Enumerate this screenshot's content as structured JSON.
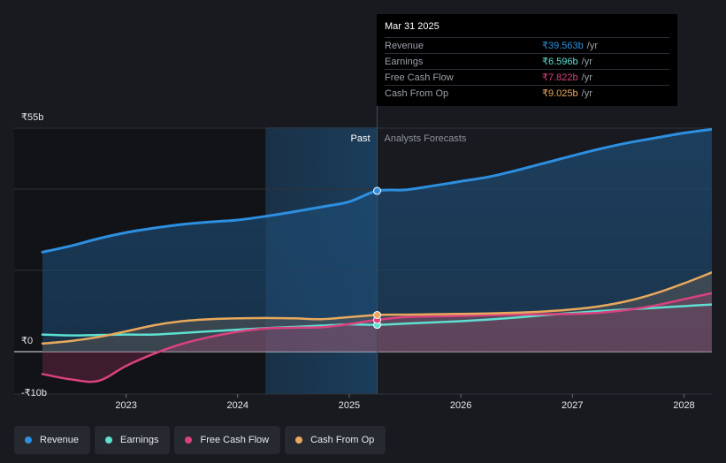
{
  "chart_data": {
    "type": "line",
    "currency_unit": "₹b",
    "y_ticks": [
      {
        "value": 55,
        "label": "₹55b"
      },
      {
        "value": 0,
        "label": "₹0"
      },
      {
        "value": -10,
        "label": "-₹10b"
      }
    ],
    "ylim": [
      -10,
      55
    ],
    "xlim": [
      2022.25,
      2028.25
    ],
    "x_ticks": [
      {
        "value": 2023,
        "label": "2023"
      },
      {
        "value": 2024,
        "label": "2024"
      },
      {
        "value": 2025,
        "label": "2025"
      },
      {
        "value": 2026,
        "label": "2026"
      },
      {
        "value": 2027,
        "label": "2027"
      },
      {
        "value": 2028,
        "label": "2028"
      }
    ],
    "divider_x": 2025.25,
    "highlight_start_x": 2024.25,
    "regions": {
      "past": "Past",
      "forecast": "Analysts Forecasts"
    },
    "grid": true,
    "series": [
      {
        "name": "Revenue",
        "color": "#2d8fe0",
        "fill": true,
        "points": [
          [
            2022.25,
            24.5
          ],
          [
            2022.5,
            26.0
          ],
          [
            2022.75,
            27.8
          ],
          [
            2023.0,
            29.3
          ],
          [
            2023.25,
            30.4
          ],
          [
            2023.5,
            31.3
          ],
          [
            2023.75,
            31.9
          ],
          [
            2024.0,
            32.4
          ],
          [
            2024.25,
            33.3
          ],
          [
            2024.5,
            34.4
          ],
          [
            2024.75,
            35.6
          ],
          [
            2025.0,
            36.9
          ],
          [
            2025.25,
            39.563
          ],
          [
            2025.5,
            39.8
          ],
          [
            2025.75,
            40.8
          ],
          [
            2026.0,
            41.9
          ],
          [
            2026.25,
            43.0
          ],
          [
            2026.5,
            44.6
          ],
          [
            2026.75,
            46.4
          ],
          [
            2027.0,
            48.2
          ],
          [
            2027.25,
            49.9
          ],
          [
            2027.5,
            51.4
          ],
          [
            2027.75,
            52.6
          ],
          [
            2028.0,
            53.8
          ],
          [
            2028.25,
            54.7
          ]
        ]
      },
      {
        "name": "Earnings",
        "color": "#5de0d2",
        "fill": false,
        "points": [
          [
            2022.25,
            4.2
          ],
          [
            2022.5,
            4.0
          ],
          [
            2022.75,
            4.1
          ],
          [
            2023.0,
            4.2
          ],
          [
            2023.25,
            4.2
          ],
          [
            2023.5,
            4.6
          ],
          [
            2023.75,
            5.0
          ],
          [
            2024.0,
            5.4
          ],
          [
            2024.25,
            5.8
          ],
          [
            2024.5,
            6.1
          ],
          [
            2024.75,
            6.4
          ],
          [
            2025.0,
            6.7
          ],
          [
            2025.25,
            6.596
          ],
          [
            2025.5,
            6.9
          ],
          [
            2025.75,
            7.2
          ],
          [
            2026.0,
            7.5
          ],
          [
            2026.25,
            7.9
          ],
          [
            2026.5,
            8.4
          ],
          [
            2026.75,
            9.0
          ],
          [
            2027.0,
            9.5
          ],
          [
            2027.25,
            10.0
          ],
          [
            2027.5,
            10.4
          ],
          [
            2027.75,
            10.8
          ],
          [
            2028.0,
            11.2
          ],
          [
            2028.25,
            11.6
          ]
        ]
      },
      {
        "name": "Free Cash Flow",
        "color": "#d9427e",
        "fill": false,
        "points": [
          [
            2022.25,
            -5.5
          ],
          [
            2022.5,
            -6.8
          ],
          [
            2022.75,
            -7.2
          ],
          [
            2023.0,
            -3.5
          ],
          [
            2023.25,
            -0.5
          ],
          [
            2023.5,
            1.9
          ],
          [
            2023.75,
            3.6
          ],
          [
            2024.0,
            4.9
          ],
          [
            2024.25,
            5.7
          ],
          [
            2024.5,
            5.9
          ],
          [
            2024.75,
            6.0
          ],
          [
            2025.0,
            6.8
          ],
          [
            2025.25,
            7.822
          ],
          [
            2025.5,
            8.5
          ],
          [
            2025.75,
            8.7
          ],
          [
            2026.0,
            8.8
          ],
          [
            2026.25,
            9.0
          ],
          [
            2026.5,
            9.1
          ],
          [
            2026.75,
            9.2
          ],
          [
            2027.0,
            9.3
          ],
          [
            2027.25,
            9.6
          ],
          [
            2027.5,
            10.3
          ],
          [
            2027.75,
            11.4
          ],
          [
            2028.0,
            12.9
          ],
          [
            2028.25,
            14.4
          ]
        ]
      },
      {
        "name": "Cash From Op",
        "color": "#e8a95c",
        "fill": false,
        "points": [
          [
            2022.25,
            2.0
          ],
          [
            2022.5,
            2.6
          ],
          [
            2022.75,
            3.6
          ],
          [
            2023.0,
            5.0
          ],
          [
            2023.25,
            6.5
          ],
          [
            2023.5,
            7.5
          ],
          [
            2023.75,
            8.0
          ],
          [
            2024.0,
            8.2
          ],
          [
            2024.25,
            8.3
          ],
          [
            2024.5,
            8.2
          ],
          [
            2024.75,
            8.0
          ],
          [
            2025.0,
            8.5
          ],
          [
            2025.25,
            9.025
          ],
          [
            2025.5,
            9.1
          ],
          [
            2025.75,
            9.2
          ],
          [
            2026.0,
            9.3
          ],
          [
            2026.25,
            9.4
          ],
          [
            2026.5,
            9.6
          ],
          [
            2026.75,
            9.9
          ],
          [
            2027.0,
            10.4
          ],
          [
            2027.25,
            11.2
          ],
          [
            2027.5,
            12.5
          ],
          [
            2027.75,
            14.4
          ],
          [
            2028.0,
            16.8
          ],
          [
            2028.25,
            19.5
          ]
        ]
      }
    ]
  },
  "tooltip": {
    "date": "Mar 31 2025",
    "rows": [
      {
        "label": "Revenue",
        "value": "₹39.563b",
        "unit": "/yr",
        "color": "#2d8fe0"
      },
      {
        "label": "Earnings",
        "value": "₹6.596b",
        "unit": "/yr",
        "color": "#5de0d2"
      },
      {
        "label": "Free Cash Flow",
        "value": "₹7.822b",
        "unit": "/yr",
        "color": "#d9427e"
      },
      {
        "label": "Cash From Op",
        "value": "₹9.025b",
        "unit": "/yr",
        "color": "#e8a95c"
      }
    ]
  },
  "legend": [
    {
      "label": "Revenue",
      "color": "#2d8fe0"
    },
    {
      "label": "Earnings",
      "color": "#5de0d2"
    },
    {
      "label": "Free Cash Flow",
      "color": "#d9427e"
    },
    {
      "label": "Cash From Op",
      "color": "#e8a95c"
    }
  ]
}
